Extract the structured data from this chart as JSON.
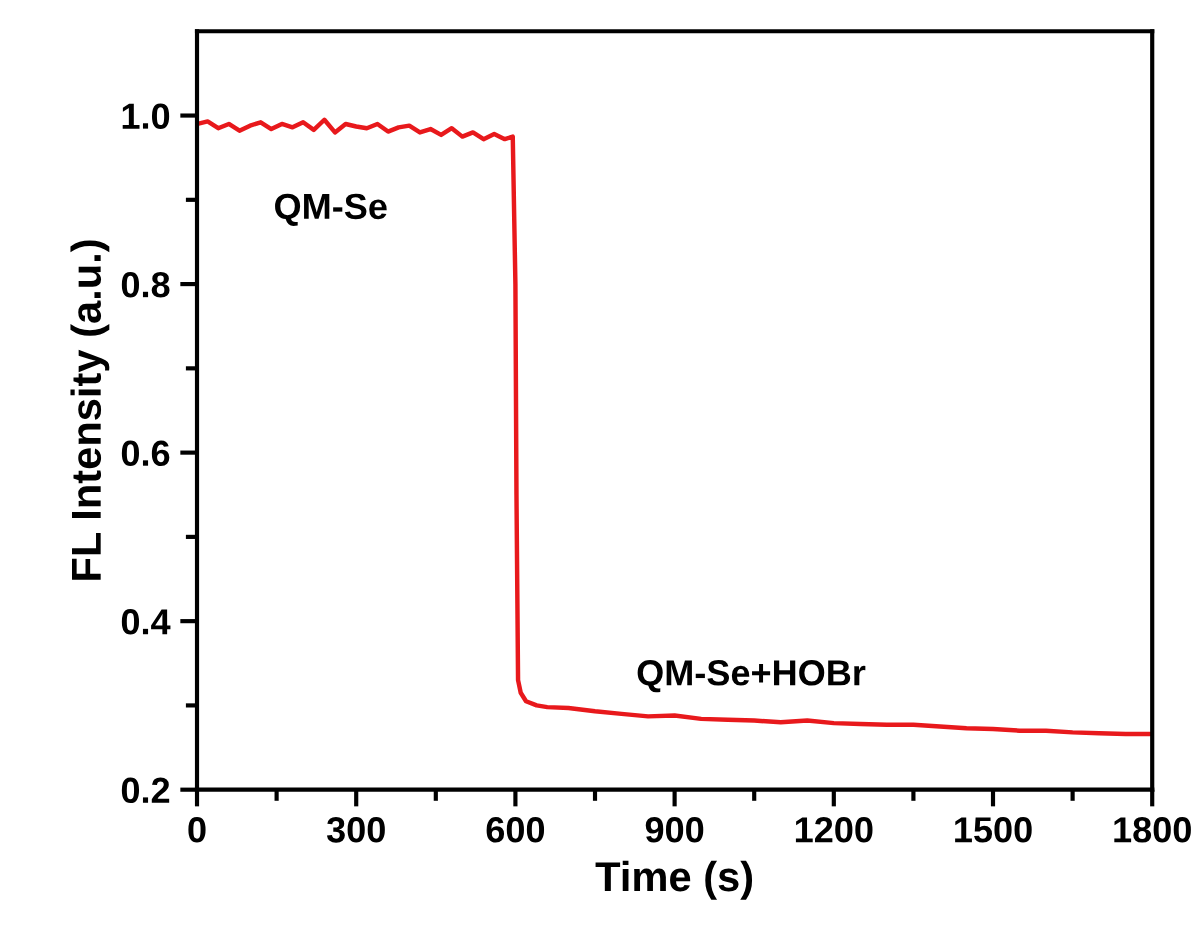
{
  "chart_data": {
    "type": "line",
    "xlabel": "Time (s)",
    "ylabel": "FL Intensity (a.u.)",
    "series": [
      {
        "color": "#e8191c",
        "x": [
          0,
          20,
          40,
          60,
          80,
          100,
          120,
          140,
          160,
          180,
          200,
          220,
          240,
          260,
          280,
          300,
          320,
          340,
          360,
          380,
          400,
          420,
          440,
          460,
          480,
          500,
          520,
          540,
          560,
          580,
          595,
          600,
          602,
          605,
          610,
          620,
          640,
          660,
          700,
          750,
          800,
          850,
          900,
          950,
          1000,
          1050,
          1100,
          1150,
          1200,
          1250,
          1300,
          1350,
          1400,
          1450,
          1500,
          1550,
          1600,
          1650,
          1700,
          1750,
          1800
        ],
        "values": [
          0.99,
          0.993,
          0.985,
          0.99,
          0.982,
          0.988,
          0.992,
          0.984,
          0.99,
          0.986,
          0.992,
          0.983,
          0.995,
          0.98,
          0.99,
          0.987,
          0.985,
          0.99,
          0.981,
          0.986,
          0.988,
          0.98,
          0.984,
          0.977,
          0.985,
          0.975,
          0.98,
          0.972,
          0.978,
          0.972,
          0.975,
          0.8,
          0.55,
          0.33,
          0.315,
          0.305,
          0.3,
          0.298,
          0.297,
          0.293,
          0.29,
          0.287,
          0.288,
          0.284,
          0.283,
          0.282,
          0.28,
          0.282,
          0.279,
          0.278,
          0.277,
          0.277,
          0.275,
          0.273,
          0.272,
          0.27,
          0.27,
          0.268,
          0.267,
          0.266,
          0.266
        ]
      }
    ],
    "annotations": [
      "QM-Se",
      "QM-Se+HOBr"
    ],
    "xlim": [
      0,
      1800
    ],
    "ylim": [
      0.2,
      1.1
    ],
    "xticks": [
      0,
      {
        "value": 150,
        "label": null
      },
      300,
      {
        "value": 450,
        "label": null
      },
      600,
      {
        "value": 750,
        "label": null
      },
      900,
      {
        "value": 1050,
        "label": null
      },
      1200,
      {
        "value": 1350,
        "label": null
      },
      1500,
      {
        "value": 1650,
        "label": null
      },
      1800
    ],
    "yticks": [
      0.2,
      {
        "value": 0.3,
        "label": null
      },
      0.4,
      {
        "value": 0.5,
        "label": null
      },
      0.6,
      {
        "value": 0.7,
        "label": null
      },
      0.8,
      {
        "value": 0.9,
        "label": null
      },
      {
        "value": 1,
        "label": "1.0"
      }
    ],
    "grid": false,
    "legend": false,
    "marker": "none",
    "line_style": "solid"
  }
}
